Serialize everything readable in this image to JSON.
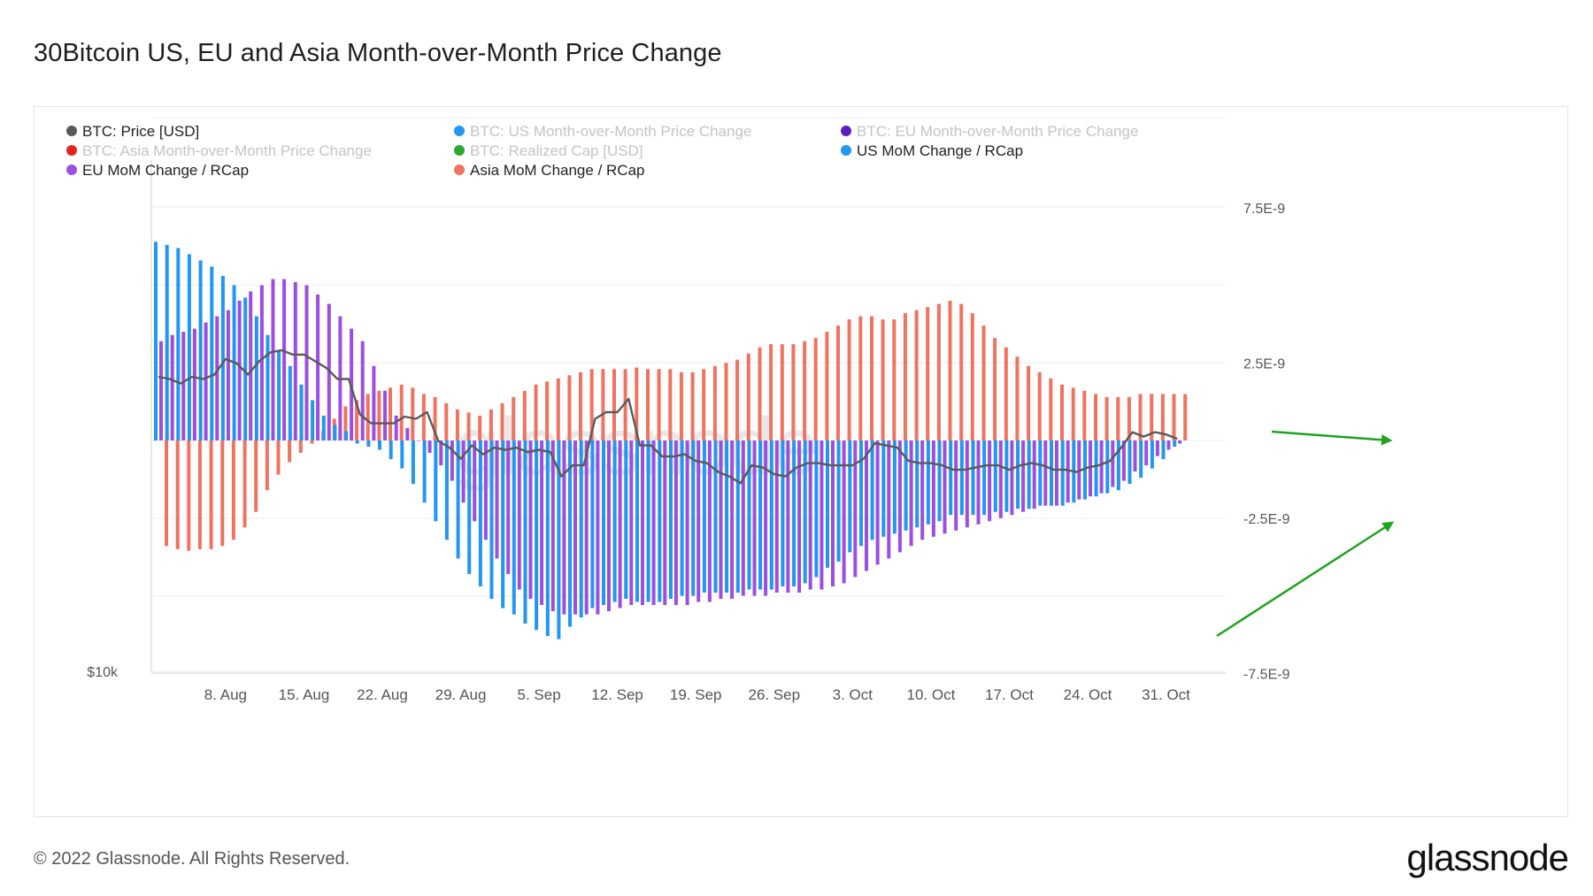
{
  "title": "30Bitcoin US, EU and Asia Month-over-Month Price Change",
  "copyright": "© 2022 Glassnode. All Rights Reserved.",
  "logo": "glassnode",
  "watermark": "glassnode",
  "colors": {
    "price": "#5a5a5a",
    "us": "#2196f3",
    "eu": "#9c4ee0",
    "asia": "#f07360",
    "eu_legend": "#5b1cc2",
    "asia_legend": "#e52420",
    "rcap_legend": "#2ea82e",
    "arrow": "#1ea31e",
    "grid": "#ececec",
    "axis_text": "#555555"
  },
  "chart_data": {
    "type": "bar",
    "title": "30Bitcoin US, EU and Asia Month-over-Month Price Change",
    "legend_position": "top-left",
    "legend": [
      {
        "label": "BTC: Price [USD]",
        "color": "#5a5a5a",
        "active": true
      },
      {
        "label": "BTC: US Month-over-Month Price Change",
        "color": "#2196f3",
        "active": false
      },
      {
        "label": "BTC: EU Month-over-Month Price Change",
        "color": "#5b1cc2",
        "active": false
      },
      {
        "label": "BTC: Asia Month-over-Month Price Change",
        "color": "#e52420",
        "active": false
      },
      {
        "label": "BTC: Realized Cap [USD]",
        "color": "#2ea82e",
        "active": false
      },
      {
        "label": "US MoM Change / RCap",
        "color": "#2196f3",
        "active": true
      },
      {
        "label": "EU MoM Change / RCap",
        "color": "#9c4ee0",
        "active": true
      },
      {
        "label": "Asia MoM Change / RCap",
        "color": "#f07360",
        "active": true
      }
    ],
    "x_ticks": [
      "8. Aug",
      "15. Aug",
      "22. Aug",
      "29. Aug",
      "5. Sep",
      "12. Sep",
      "19. Sep",
      "26. Sep",
      "3. Oct",
      "10. Oct",
      "17. Oct",
      "24. Oct",
      "31. Oct"
    ],
    "x_tick_index": [
      6,
      13,
      20,
      27,
      34,
      41,
      48,
      55,
      62,
      69,
      76,
      83,
      90
    ],
    "y_right_ticks": [
      "7.5E-9",
      "2.5E-9",
      "-2.5E-9",
      "-7.5E-9"
    ],
    "y_right_tick_values": [
      7.5,
      2.5,
      -2.5,
      -7.5
    ],
    "y_right_unit": "1E-9",
    "y_right_range": [
      -7.5,
      10
    ],
    "y_left_label": "$10k",
    "y_left_value": 10000,
    "y_left_range": [
      10000,
      35000
    ],
    "days": [
      "1. Aug",
      "2. Aug",
      "3. Aug",
      "4. Aug",
      "5. Aug",
      "6. Aug",
      "7. Aug",
      "8. Aug",
      "9. Aug",
      "10. Aug",
      "11. Aug",
      "12. Aug",
      "13. Aug",
      "14. Aug",
      "15. Aug",
      "16. Aug",
      "17. Aug",
      "18. Aug",
      "19. Aug",
      "20. Aug",
      "21. Aug",
      "22. Aug",
      "23. Aug",
      "24. Aug",
      "25. Aug",
      "26. Aug",
      "27. Aug",
      "28. Aug",
      "29. Aug",
      "30. Aug",
      "31. Aug",
      "1. Sep",
      "2. Sep",
      "3. Sep",
      "4. Sep",
      "5. Sep",
      "6. Sep",
      "7. Sep",
      "8. Sep",
      "9. Sep",
      "10. Sep",
      "11. Sep",
      "12. Sep",
      "13. Sep",
      "14. Sep",
      "15. Sep",
      "16. Sep",
      "17. Sep",
      "18. Sep",
      "19. Sep",
      "20. Sep",
      "21. Sep",
      "22. Sep",
      "23. Sep",
      "24. Sep",
      "25. Sep",
      "26. Sep",
      "27. Sep",
      "28. Sep",
      "29. Sep",
      "30. Sep",
      "1. Oct",
      "2. Oct",
      "3. Oct",
      "4. Oct",
      "5. Oct",
      "6. Oct",
      "7. Oct",
      "8. Oct",
      "9. Oct",
      "10. Oct",
      "11. Oct",
      "12. Oct",
      "13. Oct",
      "14. Oct",
      "15. Oct",
      "16. Oct",
      "17. Oct",
      "18. Oct",
      "19. Oct",
      "20. Oct",
      "21. Oct",
      "22. Oct",
      "23. Oct",
      "24. Oct",
      "25. Oct",
      "26. Oct",
      "27. Oct",
      "28. Oct",
      "29. Oct",
      "30. Oct",
      "31. Oct"
    ],
    "series": [
      {
        "name": "US MoM Change / RCap",
        "unit": "1E-9",
        "values": [
          6.4,
          6.3,
          6.2,
          6.0,
          5.8,
          5.6,
          5.3,
          5.0,
          4.6,
          4.0,
          3.4,
          2.9,
          2.4,
          1.8,
          1.3,
          0.8,
          0.5,
          0.3,
          -0.1,
          -0.2,
          -0.3,
          -0.6,
          -0.9,
          -1.4,
          -2.0,
          -2.6,
          -3.2,
          -3.8,
          -4.3,
          -4.7,
          -5.1,
          -5.4,
          -5.6,
          -5.9,
          -6.1,
          -6.3,
          -6.4,
          -6.0,
          -5.7,
          -5.4,
          -5.3,
          -5.2,
          -5.1,
          -5.2,
          -5.2,
          -5.2,
          -5.1,
          -5.0,
          -5.0,
          -4.9,
          -4.9,
          -4.9,
          -4.9,
          -4.8,
          -4.8,
          -4.8,
          -4.7,
          -4.7,
          -4.6,
          -4.4,
          -4.1,
          -3.9,
          -3.6,
          -3.4,
          -3.2,
          -3.1,
          -3.0,
          -2.9,
          -2.8,
          -2.7,
          -2.6,
          -2.4,
          -2.4,
          -2.4,
          -2.4,
          -2.3,
          -2.3,
          -2.2,
          -2.2,
          -2.1,
          -2.1,
          -2.1,
          -2.0,
          -1.9,
          -1.8,
          -1.7,
          -1.6,
          -1.4,
          -1.2,
          -0.9,
          -0.6,
          -0.2
        ]
      },
      {
        "name": "EU MoM Change / RCap",
        "unit": "1E-9",
        "values": [
          3.2,
          3.4,
          3.5,
          3.6,
          3.8,
          4.0,
          4.2,
          4.5,
          4.8,
          5.0,
          5.2,
          5.2,
          5.1,
          5.0,
          4.7,
          4.4,
          4.0,
          3.6,
          3.2,
          2.4,
          1.6,
          0.8,
          0.4,
          0.0,
          -0.4,
          -0.8,
          -1.3,
          -2.0,
          -2.6,
          -3.2,
          -3.8,
          -4.3,
          -4.8,
          -5.1,
          -5.3,
          -5.5,
          -5.6,
          -5.6,
          -5.6,
          -5.6,
          -5.5,
          -5.4,
          -5.3,
          -5.3,
          -5.3,
          -5.3,
          -5.3,
          -5.3,
          -5.2,
          -5.2,
          -5.1,
          -5.1,
          -5.0,
          -5.0,
          -5.0,
          -4.9,
          -4.9,
          -4.9,
          -4.8,
          -4.8,
          -4.7,
          -4.6,
          -4.4,
          -4.2,
          -4.0,
          -3.8,
          -3.6,
          -3.4,
          -3.2,
          -3.1,
          -3.0,
          -2.9,
          -2.8,
          -2.7,
          -2.6,
          -2.5,
          -2.4,
          -2.3,
          -2.2,
          -2.1,
          -2.1,
          -2.0,
          -1.9,
          -1.8,
          -1.7,
          -1.5,
          -1.3,
          -1.0,
          -0.8,
          -0.5,
          -0.3,
          -0.1
        ]
      },
      {
        "name": "Asia MoM Change / RCap",
        "unit": "1E-9",
        "values": [
          -3.4,
          -3.5,
          -3.55,
          -3.5,
          -3.5,
          -3.4,
          -3.2,
          -2.8,
          -2.3,
          -1.6,
          -1.1,
          -0.7,
          -0.4,
          -0.1,
          0.3,
          0.7,
          1.1,
          1.3,
          1.5,
          1.6,
          1.7,
          1.8,
          1.7,
          1.5,
          1.4,
          1.2,
          1.0,
          0.9,
          0.8,
          1.0,
          1.2,
          1.4,
          1.6,
          1.8,
          1.9,
          2.0,
          2.1,
          2.2,
          2.3,
          2.3,
          2.3,
          2.3,
          2.35,
          2.3,
          2.3,
          2.3,
          2.2,
          2.2,
          2.3,
          2.4,
          2.5,
          2.6,
          2.8,
          3.0,
          3.1,
          3.1,
          3.1,
          3.2,
          3.3,
          3.5,
          3.7,
          3.9,
          4.0,
          4.0,
          3.9,
          3.9,
          4.1,
          4.2,
          4.3,
          4.4,
          4.5,
          4.4,
          4.1,
          3.7,
          3.3,
          3.0,
          2.7,
          2.4,
          2.2,
          2.0,
          1.8,
          1.7,
          1.6,
          1.5,
          1.4,
          1.4,
          1.4,
          1.5,
          1.5,
          1.5,
          1.5,
          1.5
        ]
      },
      {
        "name": "BTC: Price [USD]",
        "unit": "USD",
        "values": [
          23300,
          23200,
          23000,
          23300,
          23200,
          23400,
          24100,
          23900,
          23400,
          24000,
          24400,
          24500,
          24300,
          24300,
          24000,
          23700,
          23200,
          23200,
          21600,
          21200,
          21200,
          21200,
          21500,
          21400,
          21700,
          20400,
          20100,
          19600,
          20200,
          19800,
          20100,
          20000,
          20100,
          19900,
          20000,
          19900,
          18800,
          19300,
          19300,
          21400,
          21700,
          21700,
          22300,
          20200,
          20200,
          19700,
          19700,
          19800,
          19500,
          19400,
          19000,
          18800,
          18500,
          19300,
          19200,
          18900,
          18800,
          19200,
          19400,
          19400,
          19300,
          19300,
          19300,
          19600,
          20300,
          20200,
          20100,
          19500,
          19400,
          19400,
          19300,
          19100,
          19100,
          19200,
          19300,
          19300,
          19100,
          19300,
          19400,
          19300,
          19100,
          19100,
          19000,
          19200,
          19300,
          19500,
          20100,
          20800,
          20600,
          20800,
          20700,
          20500
        ]
      }
    ]
  }
}
